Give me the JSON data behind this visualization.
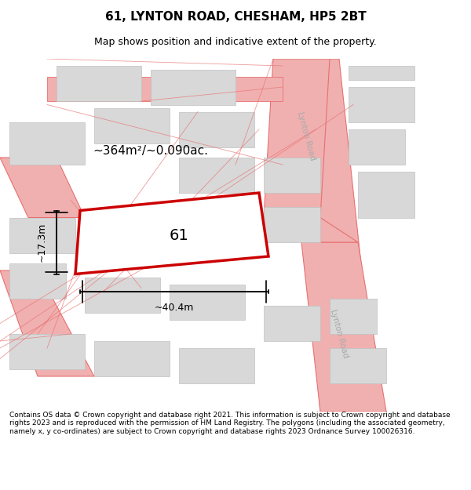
{
  "title": "61, LYNTON ROAD, CHESHAM, HP5 2BT",
  "subtitle": "Map shows position and indicative extent of the property.",
  "footer": "Contains OS data © Crown copyright and database right 2021. This information is subject to Crown copyright and database rights 2023 and is reproduced with the permission of HM Land Registry. The polygons (including the associated geometry, namely x, y co-ordinates) are subject to Crown copyright and database rights 2023 Ordnance Survey 100026316.",
  "bg_color": "#ffffff",
  "map_bg_color": "#ffffff",
  "road_color": "#f0b0b0",
  "road_line_color": "#e87070",
  "building_fill": "#d8d8d8",
  "building_edge": "#c0c0c0",
  "plot_fill": "#ffffff",
  "plot_edge": "#cc0000",
  "plot_lw": 2.5,
  "area_text": "~364m²/~0.090ac.",
  "label_text": "61",
  "width_text": "~40.4m",
  "height_text": "~17.3m",
  "road_label1": "Lynton Road",
  "road_label2": "Lynton Road"
}
